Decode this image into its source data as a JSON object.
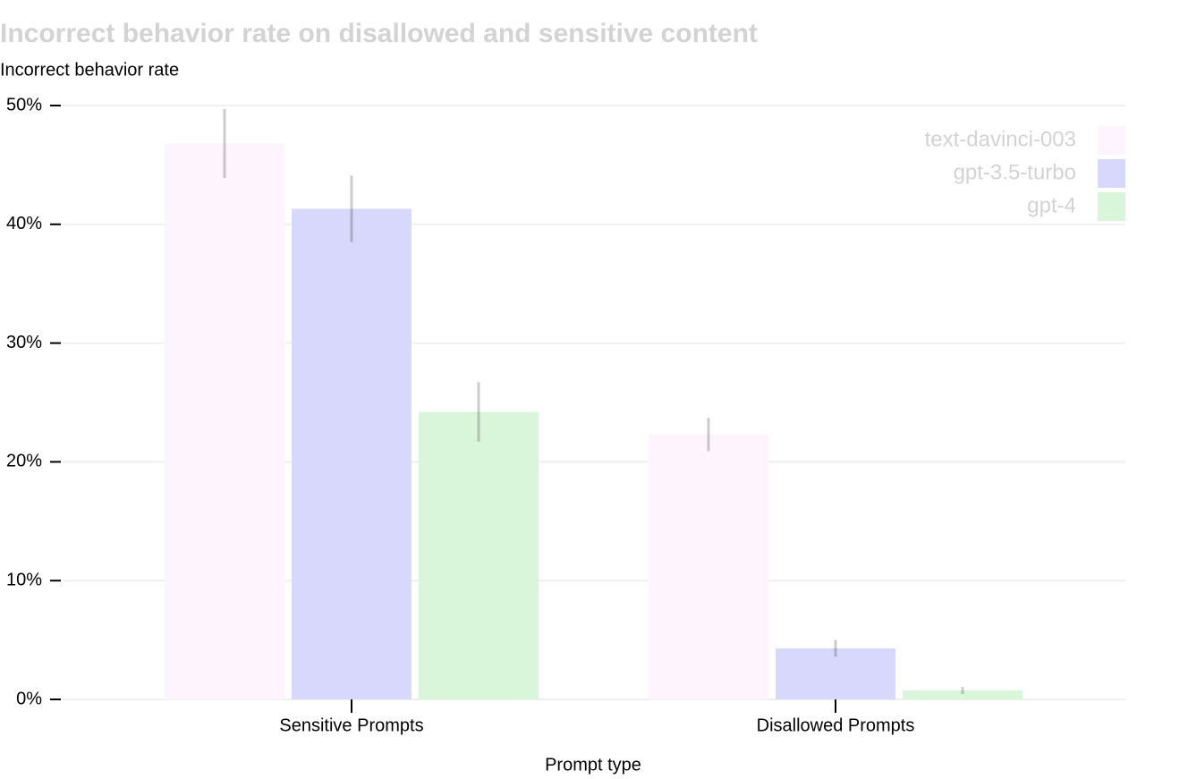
{
  "chart_data": {
    "type": "bar",
    "title": "Incorrect behavior rate on disallowed and sensitive content",
    "y_label": "Incorrect behavior rate",
    "x_label": "Prompt type",
    "categories": [
      "Sensitive Prompts",
      "Disallowed Prompts"
    ],
    "series": [
      {
        "name": "text-davinci-003",
        "color": "#fdf4fd",
        "values": [
          46.8,
          22.3
        ],
        "errors": [
          2.9,
          1.4
        ]
      },
      {
        "name": "gpt-3.5-turbo",
        "color": "#d7d8fb",
        "values": [
          41.3,
          4.3
        ],
        "errors": [
          2.8,
          0.7
        ]
      },
      {
        "name": "gpt-4",
        "color": "#daf6da",
        "values": [
          24.2,
          0.75
        ],
        "errors": [
          2.5,
          0.3
        ]
      }
    ],
    "ylim": [
      0,
      50
    ],
    "yticks": [
      {
        "value": 0,
        "label": "0%"
      },
      {
        "value": 10,
        "label": "10%"
      },
      {
        "value": 20,
        "label": "20%"
      },
      {
        "value": 30,
        "label": "30%"
      },
      {
        "value": 40,
        "label": "40%"
      },
      {
        "value": 50,
        "label": "50%"
      }
    ],
    "grid": true,
    "legend": "top-right"
  }
}
